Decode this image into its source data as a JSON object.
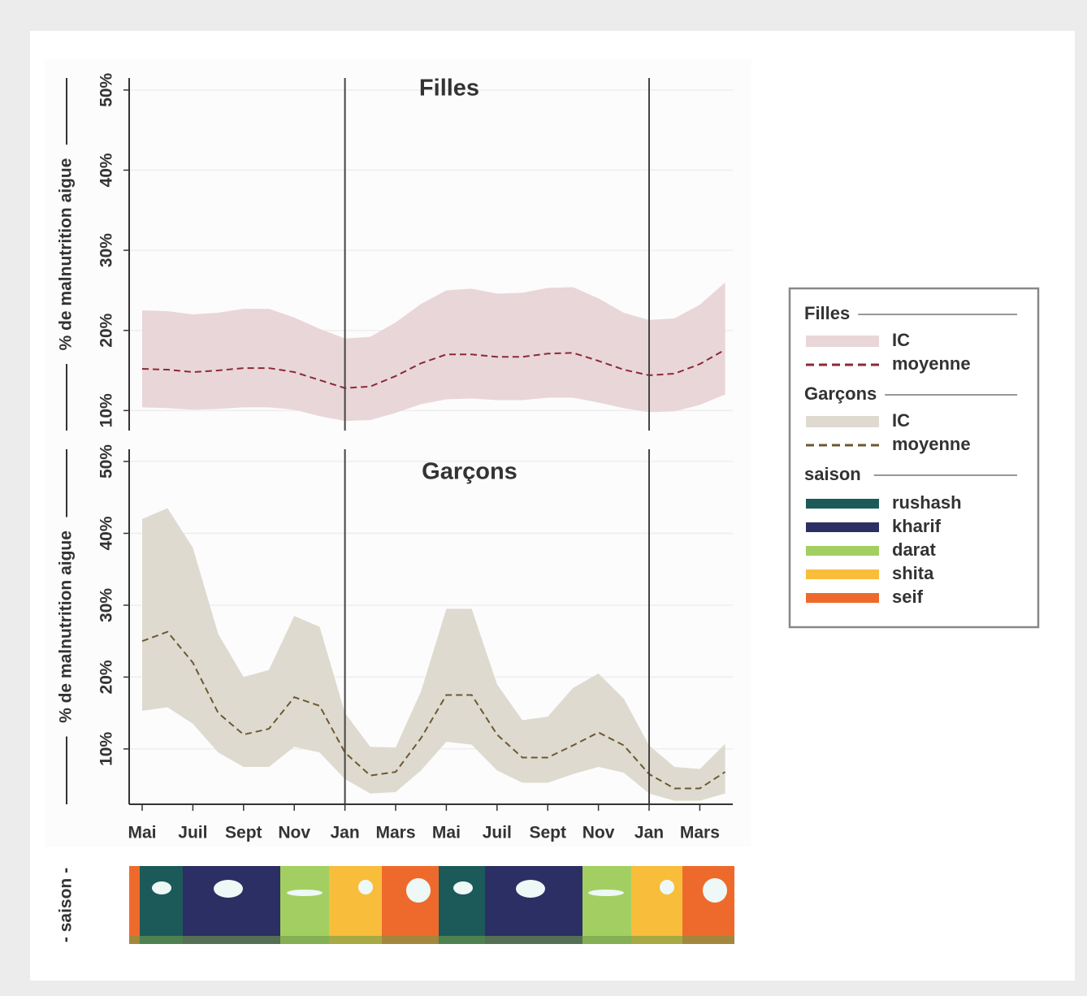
{
  "chart_data": [
    {
      "type": "line",
      "title": "Filles",
      "ylabel": "% de malnutrition aigue",
      "categories": [
        "Mai",
        null,
        "Juil",
        null,
        "Sept",
        null,
        "Nov",
        null,
        "Jan",
        null,
        "Mars",
        null,
        "Mai",
        null,
        "Juil",
        null,
        "Sept",
        null,
        "Nov",
        null,
        "Jan",
        null,
        "Mars",
        null
      ],
      "ylim": [
        7.5,
        51.5
      ],
      "yticks": [
        {
          "value": 10,
          "label": "10%"
        },
        {
          "value": 20,
          "label": "20%"
        },
        {
          "value": 30,
          "label": "30%"
        },
        {
          "value": 40,
          "label": "40%"
        },
        {
          "value": 50,
          "label": "50%"
        }
      ],
      "grid": true,
      "series": [
        {
          "name": "IC",
          "color": "#e9d6d9",
          "lower": [
            10.4,
            10.3,
            10.1,
            10.2,
            10.4,
            10.4,
            10.1,
            9.3,
            8.7,
            8.8,
            9.7,
            10.8,
            11.4,
            11.5,
            11.3,
            11.3,
            11.6,
            11.6,
            11.0,
            10.3,
            9.8,
            9.9,
            10.7,
            12.0
          ],
          "upper": [
            22.5,
            22.4,
            22.0,
            22.2,
            22.7,
            22.7,
            21.6,
            20.2,
            19.0,
            19.2,
            21.0,
            23.3,
            25.0,
            25.2,
            24.6,
            24.7,
            25.3,
            25.4,
            24.0,
            22.2,
            21.3,
            21.5,
            23.2,
            26.0
          ]
        },
        {
          "name": "moyenne",
          "color": "#8b2a35",
          "values": [
            15.2,
            15.1,
            14.8,
            15.0,
            15.3,
            15.3,
            14.8,
            13.8,
            12.8,
            13.0,
            14.3,
            15.9,
            17.0,
            17.0,
            16.7,
            16.7,
            17.1,
            17.2,
            16.2,
            15.1,
            14.4,
            14.6,
            15.8,
            17.6
          ]
        }
      ]
    },
    {
      "type": "line",
      "title": "Garçons",
      "ylabel": "% de malnutrition aigue",
      "categories": [
        "Mai",
        null,
        "Juil",
        null,
        "Sept",
        null,
        "Nov",
        null,
        "Jan",
        null,
        "Mars",
        null,
        "Mai",
        null,
        "Juil",
        null,
        "Sept",
        null,
        "Nov",
        null,
        "Jan",
        null,
        "Mars",
        null
      ],
      "ylim": [
        2.3,
        51.7
      ],
      "yticks": [
        {
          "value": 10,
          "label": "10%"
        },
        {
          "value": 20,
          "label": "20%"
        },
        {
          "value": 30,
          "label": "30%"
        },
        {
          "value": 40,
          "label": "40%"
        },
        {
          "value": 50,
          "label": "50%"
        }
      ],
      "grid": true,
      "series": [
        {
          "name": "IC",
          "color": "#dfdad0",
          "lower": [
            15.3,
            15.8,
            13.5,
            9.5,
            7.5,
            7.5,
            10.3,
            9.5,
            5.8,
            3.8,
            4.0,
            7.0,
            11.0,
            10.6,
            7.0,
            5.3,
            5.3,
            6.5,
            7.5,
            6.7,
            3.8,
            2.8,
            2.8,
            3.8
          ],
          "upper": [
            42,
            43.5,
            38,
            26,
            20,
            21,
            28.5,
            27,
            15,
            10.3,
            10.2,
            18,
            29.5,
            29.5,
            19,
            14,
            14.5,
            18.5,
            20.5,
            17,
            10.5,
            7.5,
            7.2,
            10.7
          ]
        },
        {
          "name": "moyenne",
          "color": "#6b5a30",
          "values": [
            25,
            26.3,
            22,
            15,
            12,
            12.8,
            17.2,
            16,
            9.5,
            6.3,
            6.8,
            11.5,
            17.5,
            17.5,
            12,
            8.8,
            8.8,
            10.5,
            12.3,
            10.5,
            6.5,
            4.5,
            4.5,
            6.8
          ]
        }
      ]
    }
  ],
  "season": {
    "title": "saison",
    "strip_label": "- saison -",
    "items": [
      {
        "name": "rushash",
        "color": "#1c5a5a"
      },
      {
        "name": "kharif",
        "color": "#2c2f63"
      },
      {
        "name": "darat",
        "color": "#a3cf62"
      },
      {
        "name": "shita",
        "color": "#f9bd3c"
      },
      {
        "name": "seif",
        "color": "#ee6a2c"
      }
    ]
  }
}
